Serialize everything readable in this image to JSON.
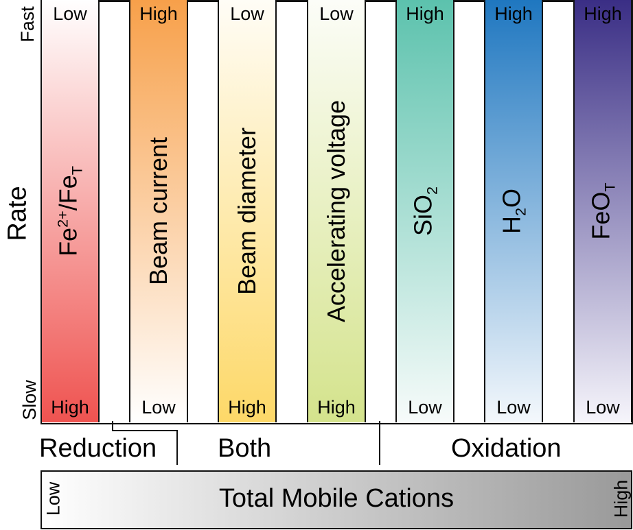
{
  "y_axis": {
    "label": "Rate",
    "top": "Fast",
    "bottom": "Slow"
  },
  "columns": [
    {
      "name_html": "Fe<sup>2+</sup>/Fe<sub>T</sub>",
      "top": "Low",
      "bottom": "High",
      "color_top": "#ffffff",
      "color_bottom": "#ef5350"
    },
    {
      "name_html": "Beam current",
      "top": "High",
      "bottom": "Low",
      "color_top": "#f7a04a",
      "color_bottom": "#ffffff"
    },
    {
      "name_html": "Beam diameter",
      "top": "Low",
      "bottom": "High",
      "color_top": "#fffdf6",
      "color_bottom": "#fdd868"
    },
    {
      "name_html": "Accelerating voltage",
      "top": "Low",
      "bottom": "High",
      "color_top": "#fcfdf8",
      "color_bottom": "#d4e38c"
    },
    {
      "name_html": "SiO<sub>2</sub>",
      "top": "High",
      "bottom": "Low",
      "color_top": "#5cc2ad",
      "color_bottom": "#f7fbfa"
    },
    {
      "name_html": "H<sub>2</sub>O",
      "top": "High",
      "bottom": "Low",
      "color_top": "#1f77c0",
      "color_bottom": "#f4f8fc"
    },
    {
      "name_html": "FeO<sub>T</sub>",
      "top": "High",
      "bottom": "Low",
      "color_top": "#3a2e85",
      "color_bottom": "#f6f5fb"
    }
  ],
  "groups": {
    "reduction": "Reduction",
    "both": "Both",
    "oxidation": "Oxidation"
  },
  "cations": {
    "label": "Total Mobile Cations",
    "low": "Low",
    "high": "High"
  }
}
